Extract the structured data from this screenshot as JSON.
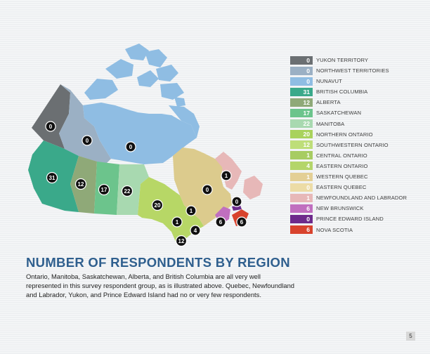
{
  "colors": {
    "yukon": "#6b6f72",
    "northwest_territories": "#9bb0c4",
    "nunavut": "#8fbde3",
    "british_columbia": "#3aa98a",
    "alberta": "#8fa978",
    "saskatchewan": "#6cc48c",
    "manitoba": "#a8d9b0",
    "ontario": "#b7d766",
    "quebec": "#dccb8d",
    "newfoundland_labrador": "#e7b8b8",
    "new_brunswick": "#c06fbf",
    "prince_edward_island": "#6d2a8b",
    "nova_scotia": "#d8432d",
    "title": "#2f5f8e"
  },
  "legend": [
    {
      "value": "0",
      "label": "YUKON TERRITORY",
      "color": "#6b6f72"
    },
    {
      "value": "0",
      "label": "NORTHWEST TERRITORIES",
      "color": "#9bb0c4"
    },
    {
      "value": "0",
      "label": "NUNAVUT",
      "color": "#8fbde3"
    },
    {
      "value": "31",
      "label": "BRITISH COLUMBIA",
      "color": "#3aa98a"
    },
    {
      "value": "12",
      "label": "ALBERTA",
      "color": "#8fa978"
    },
    {
      "value": "17",
      "label": "SASKATCHEWAN",
      "color": "#6cc48c"
    },
    {
      "value": "22",
      "label": "MANITOBA",
      "color": "#a8d9b0"
    },
    {
      "value": "20",
      "label": "NORTHERN ONTARIO",
      "color": "#a9d25c"
    },
    {
      "value": "12",
      "label": "SOUTHWESTERN ONTARIO",
      "color": "#bede79"
    },
    {
      "value": "1",
      "label": "CENTRAL ONTARIO",
      "color": "#a7cc62"
    },
    {
      "value": "4",
      "label": "EASTERN ONTARIO",
      "color": "#b4d56a"
    },
    {
      "value": "1",
      "label": "WESTERN QUEBEC",
      "color": "#e3cf95"
    },
    {
      "value": "0",
      "label": "EASTERN QUEBEC",
      "color": "#ecdca6"
    },
    {
      "value": "1",
      "label": "NEWFOUNDLAND AND LABRADOR",
      "color": "#e7b8b8"
    },
    {
      "value": "6",
      "label": "NEW BRUNSWICK",
      "color": "#c06fbf"
    },
    {
      "value": "0",
      "label": "PRINCE EDWARD ISLAND",
      "color": "#6d2a8b"
    },
    {
      "value": "6",
      "label": "NOVA SCOTIA",
      "color": "#d8432d"
    }
  ],
  "map_badges": {
    "yukon": "0",
    "northwest_territories": "0",
    "nunavut": "0",
    "british_columbia": "31",
    "alberta": "12",
    "saskatchewan": "17",
    "manitoba": "22",
    "northern_ontario": "20",
    "central_ontario": "1",
    "eastern_ontario": "4",
    "southwestern_ontario": "12",
    "western_quebec": "1",
    "eastern_quebec": "0",
    "newfoundland_labrador": "1",
    "prince_edward_island": "0",
    "new_brunswick": "6",
    "nova_scotia": "6"
  },
  "title": "NUMBER OF RESPONDENTS BY REGION",
  "body_text": "Ontario, Manitoba, Saskatchewan, Alberta, and British Columbia are all very well represented in this survey respondent group, as is illustrated above. Quebec, Newfoundland and Labrador, Yukon, and Prince Edward Island had no or very few respondents.",
  "page_number": "5"
}
